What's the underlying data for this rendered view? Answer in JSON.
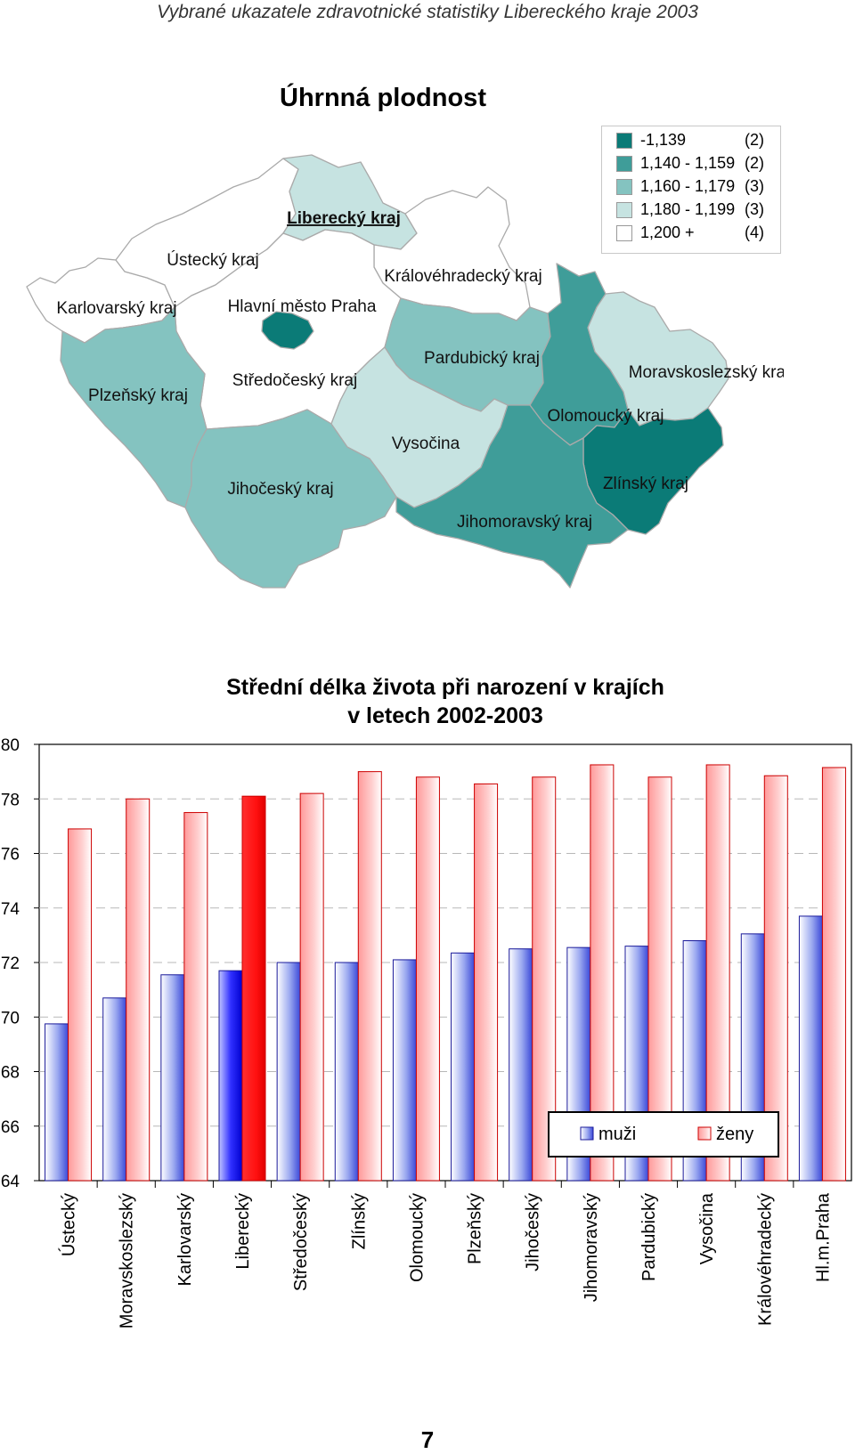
{
  "header": "Vybrané ukazatele zdravotnické statistiky Libereckého kraje 2003",
  "map": {
    "title": "Úhrnná plodnost",
    "legend": [
      {
        "range": "-1,139",
        "count": "(2)",
        "color": "#0b7b77"
      },
      {
        "range": "1,140 - 1,159",
        "count": "(2)",
        "color": "#3f9d99"
      },
      {
        "range": "1,160 - 1,179",
        "count": "(3)",
        "color": "#84c3c0"
      },
      {
        "range": "1,180 - 1,199",
        "count": "(3)",
        "color": "#c6e3e1"
      },
      {
        "range": "1,200 +",
        "count": "(4)",
        "color": "#ffffff"
      }
    ],
    "regions": {
      "liberecky": "Liberecký kraj",
      "ustecky": "Ústecký kraj",
      "kralovehradecky": "Královéhradecký kraj",
      "karlovarsky": "Karlovarský kraj",
      "praha": "Hlavní město Praha",
      "plzensky": "Plzeňský kraj",
      "stredocesky": "Středočeský kraj",
      "pardubicky": "Pardubický kraj",
      "moravskoslezsky": "Moravskoslezský kraj",
      "olomoucky": "Olomoucký kraj",
      "vysocina": "Vysočina",
      "zlinsky": "Zlínský kraj",
      "jihocesky": "Jihočeský kraj",
      "jihomoravsky": "Jihomoravský kraj"
    }
  },
  "chart_data": {
    "type": "bar",
    "title": "Střední délka života při narození v krajích v letech 2002-2003",
    "title_line1": "Střední délka života při narození v krajích",
    "title_line2": "v letech 2002-2003",
    "categories": [
      "Ústecký",
      "Moravskoslezský",
      "Karlovarský",
      "Liberecký",
      "Středočeský",
      "Zlínský",
      "Olomoucký",
      "Plzeňský",
      "Jihočeský",
      "Jihomoravský",
      "Pardubický",
      "Vysočina",
      "Královéhradecký",
      "Hl.m.Praha"
    ],
    "series": [
      {
        "name": "muži",
        "values": [
          69.75,
          70.7,
          71.55,
          71.7,
          72.0,
          72.0,
          72.1,
          72.35,
          72.5,
          72.55,
          72.6,
          72.8,
          73.05,
          73.7
        ],
        "color": "#4040ff"
      },
      {
        "name": "ženy",
        "values": [
          76.9,
          78.0,
          77.5,
          78.1,
          78.2,
          79.0,
          78.8,
          78.55,
          78.8,
          79.25,
          78.8,
          79.25,
          78.85,
          79.15
        ],
        "color": "#ff4040"
      }
    ],
    "highlight": "Liberecký",
    "ylim": [
      64,
      80
    ],
    "yticks": [
      "64",
      "66",
      "68",
      "70",
      "72",
      "74",
      "76",
      "78",
      "80"
    ],
    "grid": true,
    "legend_position": "bottom-right"
  },
  "page_number": "7"
}
